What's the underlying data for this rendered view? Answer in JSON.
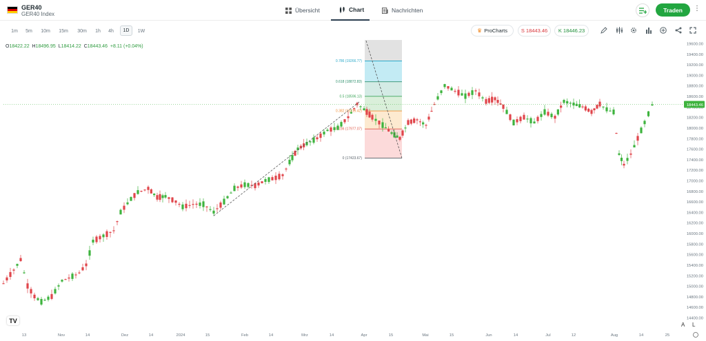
{
  "header": {
    "symbol": "GER40",
    "symbol_full": "GER40 Index",
    "tabs": [
      {
        "label": "Übersicht",
        "icon": "grid-icon"
      },
      {
        "label": "Chart",
        "icon": "candles-icon"
      },
      {
        "label": "Nachrichten",
        "icon": "news-icon"
      }
    ],
    "trade_label": "Traden",
    "flag_colors": [
      "#000000",
      "#dd0000",
      "#ffce00"
    ]
  },
  "toolbar": {
    "timeframes": [
      "1m",
      "5m",
      "10m",
      "15m",
      "30m",
      "1h",
      "4h",
      "1D",
      "1W"
    ],
    "active_timeframe": "1D",
    "procharts_label": "ProCharts",
    "sell_label": "S 18443.46",
    "buy_label": "K 18446.23",
    "tools": [
      "pencil-icon",
      "indicators-icon",
      "settings-icon",
      "bar-chart-icon",
      "add-icon",
      "share-icon",
      "fullscreen-icon"
    ]
  },
  "ohlc": {
    "o_key": "O",
    "o_val": "18422.22",
    "h_key": "H",
    "h_val": "18496.95",
    "l_key": "L",
    "l_val": "18414.22",
    "c_key": "C",
    "c_val": "18443.46",
    "change": "+8.11 (+0.04%)"
  },
  "chart_data": {
    "type": "candlestick",
    "y_axis_labels": [
      "19600.00",
      "19400.00",
      "19200.00",
      "19000.00",
      "18800.00",
      "18600.00",
      "18400.00",
      "18200.00",
      "18000.00",
      "17800.00",
      "17600.00",
      "17400.00",
      "17200.00",
      "17000.00",
      "16800.00",
      "16600.00",
      "16400.00",
      "16200.00",
      "16000.00",
      "15800.00",
      "15600.00",
      "15400.00",
      "15200.00",
      "15000.00",
      "14800.00",
      "14600.00",
      "14400.00"
    ],
    "current_price_label": "18443.46",
    "x_axis_labels": [
      "13",
      "Nov",
      "14",
      "Dez",
      "14",
      "2024",
      "15",
      "Feb",
      "14",
      "Mrz",
      "14",
      "Apr",
      "15",
      "Mai",
      "15",
      "Jun",
      "14",
      "Jul",
      "12",
      "Aug",
      "14",
      "25"
    ],
    "fib_levels": [
      {
        "label": "0.786 (19266.77)",
        "value": 19266.77,
        "color": "#2aa9c9"
      },
      {
        "label": "0.618 (18872.83)",
        "value": 18872.83,
        "color": "#2e8f6c"
      },
      {
        "label": "0.5 (18596.13)",
        "value": 18596.13,
        "color": "#3da55a"
      },
      {
        "label": "0.382 (18319.42)",
        "value": 18319.42,
        "color": "#f0903a"
      },
      {
        "label": "0.236 (17977.07)",
        "value": 17977.07,
        "color": "#e05a4a"
      },
      {
        "label": "0 (17423.67)",
        "value": 17423.67,
        "color": "#555e66"
      }
    ],
    "bottom_right_labels": [
      "A",
      "L"
    ],
    "up_color": "#3eb33e",
    "down_color": "#e0454b"
  }
}
